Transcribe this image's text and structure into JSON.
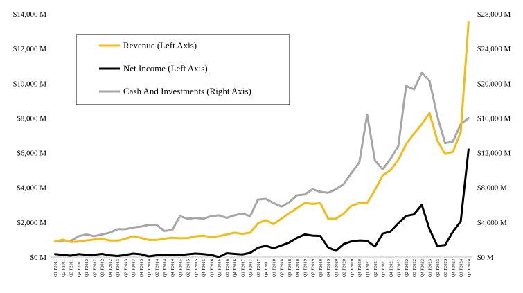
{
  "chart_data": {
    "type": "line",
    "title": "",
    "grid": false,
    "legend_position": "top-left",
    "left_axis": {
      "range": [
        0,
        14000
      ],
      "ticks": [
        0,
        2000,
        4000,
        6000,
        8000,
        10000,
        12000,
        14000
      ],
      "tick_labels": [
        "$0 M",
        "$2,000 M",
        "$4,000 M",
        "$6,000 M",
        "$8,000 M",
        "$10,000 M",
        "$12,000 M",
        "$14,000 M"
      ]
    },
    "right_axis": {
      "range": [
        0,
        28000
      ],
      "ticks": [
        0,
        4000,
        8000,
        12000,
        16000,
        20000,
        24000,
        28000
      ],
      "tick_labels": [
        "$0 M",
        "$4,000 M",
        "$8,000 M",
        "$12,000 M",
        "$16,000 M",
        "$20,000 M",
        "$24,000 M",
        "$28,000 M"
      ]
    },
    "categories": [
      "Q1 F2011",
      "Q2 F2011",
      "Q3 F2011",
      "Q4 F2011",
      "Q1 F2012",
      "Q2 F2012",
      "Q3 F2012",
      "Q4 F2012",
      "Q1 F2013",
      "Q2 F2013",
      "Q3 F2013",
      "Q4 F2013",
      "Q1 F2014",
      "Q2 F2014",
      "Q3 F2014",
      "Q4 F2014",
      "Q1 F2015",
      "Q2 F2015",
      "Q3 F2015",
      "Q4 F2015",
      "Q1 F2016",
      "Q2 F2016",
      "Q3 F2016",
      "Q4 F2016",
      "Q1 F2017",
      "Q2 F2017",
      "Q3 F2017",
      "Q4 F2017",
      "Q1 F2018",
      "Q2 F2018",
      "Q3 F2018",
      "Q4 F2018",
      "Q1 F2019",
      "Q2 F2019",
      "Q3 F2019",
      "Q4 F2019",
      "Q1 F2020",
      "Q2 F2020",
      "Q3 F2020",
      "Q4 F2020",
      "Q1 F2021",
      "Q2 F2021",
      "Q3 F2021",
      "Q4 F2021",
      "Q1 F2022",
      "Q2 F2022",
      "Q3 F2022",
      "Q4 F2022",
      "Q1 F2023",
      "Q2 F2023",
      "Q3 F2023",
      "Q4 F2023",
      "Q1 F2024",
      "Q2 F2024"
    ],
    "series": [
      {
        "name": "Revenue (Left Axis)",
        "axis": "left",
        "color": "#F2BC17",
        "values": [
          900,
          1000,
          870,
          890,
          950,
          1010,
          1050,
          950,
          940,
          1050,
          1200,
          1100,
          980,
          980,
          1050,
          1110,
          1080,
          1090,
          1190,
          1230,
          1150,
          1200,
          1300,
          1400,
          1330,
          1400,
          1940,
          2120,
          1900,
          2200,
          2520,
          2800,
          3110,
          3050,
          3100,
          2200,
          2200,
          2500,
          2950,
          3100,
          3100,
          3850,
          4700,
          5000,
          5600,
          6500,
          7100,
          7640,
          8290,
          6700,
          5930,
          6050,
          7190,
          13510
        ]
      },
      {
        "name": "Net Income (Left Axis)",
        "axis": "left",
        "color": "#000000",
        "values": [
          170,
          120,
          80,
          170,
          130,
          130,
          180,
          100,
          60,
          120,
          200,
          160,
          40,
          100,
          100,
          110,
          110,
          160,
          200,
          170,
          120,
          0,
          220,
          180,
          150,
          240,
          530,
          650,
          500,
          660,
          830,
          1100,
          1300,
          1230,
          1210,
          550,
          360,
          750,
          900,
          950,
          930,
          600,
          1350,
          1470,
          1950,
          2360,
          2450,
          3000,
          1600,
          640,
          690,
          1460,
          2050,
          6190
        ]
      },
      {
        "name": "Cash And Investments (Right Axis)",
        "axis": "right",
        "color": "#A6A6A6",
        "values": [
          1800,
          1900,
          1850,
          2400,
          2600,
          2400,
          2600,
          2800,
          3200,
          3200,
          3400,
          3500,
          3700,
          3700,
          3000,
          3100,
          4700,
          4400,
          4500,
          4400,
          4700,
          4800,
          4500,
          4800,
          5000,
          4700,
          6600,
          6700,
          6200,
          5800,
          6300,
          7100,
          7200,
          7800,
          7500,
          7400,
          7800,
          8400,
          9700,
          10900,
          16400,
          11100,
          10100,
          11300,
          12800,
          19700,
          19300,
          21200,
          20300,
          16200,
          13100,
          13300,
          15300,
          16000
        ]
      }
    ]
  }
}
